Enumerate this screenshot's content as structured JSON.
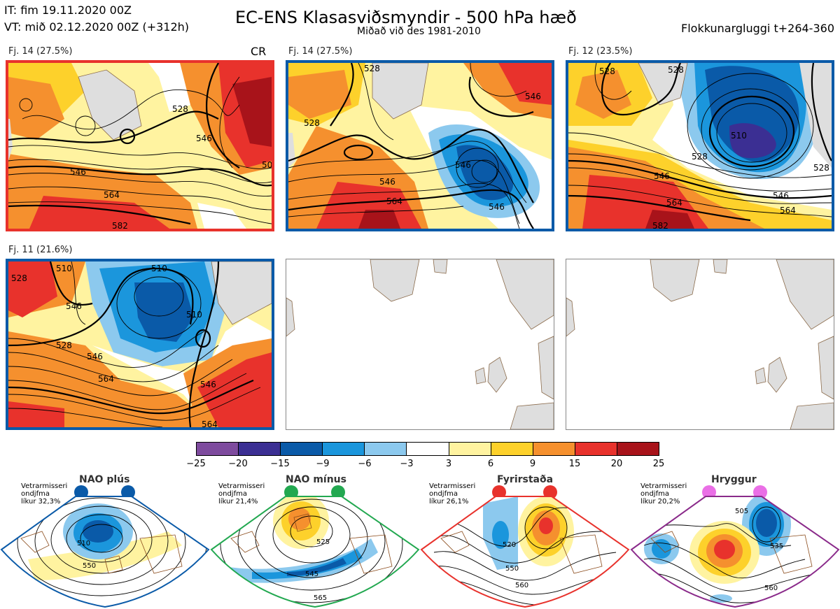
{
  "header": {
    "it_line": "IT: fim 19.11.2020 00Z",
    "vt_line": "VT: mið 02.12.2020 00Z  (+312h)",
    "title": "EC-ENS Klasasviðsmyndir - 500 hPa hæð",
    "subtitle": "Miðað við des 1981-2010",
    "window": "Flokkunargluggi t+264-360"
  },
  "panels": [
    {
      "label": "Fj. 14 (27.5%)",
      "tag": "CR",
      "border": "#e8322c",
      "contours": [
        "528",
        "546",
        "546",
        "564",
        "582",
        "50"
      ]
    },
    {
      "label": "Fj. 14 (27.5%)",
      "tag": "",
      "border": "#0a5aa8",
      "contours": [
        "528",
        "528",
        "546",
        "546",
        "546",
        "564",
        "546"
      ]
    },
    {
      "label": "Fj. 12 (23.5%)",
      "tag": "",
      "border": "#0a5aa8",
      "contours": [
        "528",
        "510",
        "528",
        "546",
        "564",
        "546",
        "564",
        "582",
        "528",
        "528"
      ]
    },
    {
      "label": "Fj. 11 (21.6%)",
      "tag": "",
      "border": "#0a5aa8",
      "contours": [
        "528",
        "510",
        "510",
        "546",
        "528",
        "546",
        "564",
        "546",
        "564",
        "510"
      ]
    }
  ],
  "colorbar": {
    "ticks": [
      "−25",
      "−20",
      "−15",
      "−9",
      "−6",
      "−3",
      "3",
      "6",
      "9",
      "15",
      "20",
      "25"
    ],
    "colors": [
      "#7e4b9e",
      "#3b2f93",
      "#0a5aa8",
      "#1b96dc",
      "#8cc9ee",
      "#ffffff",
      "#fff3a0",
      "#fdd12b",
      "#f5902e",
      "#e8322c",
      "#a8131a"
    ]
  },
  "regimes": [
    {
      "name": "NAO plús",
      "info": [
        "Vetrarmisseri",
        "ondjfma",
        "líkur 32,3%"
      ],
      "color": "#0a5aa8",
      "contours": [
        "510",
        "550"
      ]
    },
    {
      "name": "NAO mínus",
      "info": [
        "Vetrarmisseri",
        "ondjfma",
        "líkur 21,4%"
      ],
      "color": "#22a850",
      "contours": [
        "525",
        "545",
        "565"
      ]
    },
    {
      "name": "Fyrirstaða",
      "info": [
        "Vetrarmisseri",
        "ondjfma",
        "líkur 26,1%"
      ],
      "color": "#e8322c",
      "contours": [
        "520",
        "550",
        "560"
      ]
    },
    {
      "name": "Hryggur",
      "info": [
        "Vetrarmisseri",
        "ondjfma",
        "líkur 20,2%"
      ],
      "color": "#8a2a8a",
      "contours": [
        "505",
        "535",
        "560"
      ]
    }
  ]
}
